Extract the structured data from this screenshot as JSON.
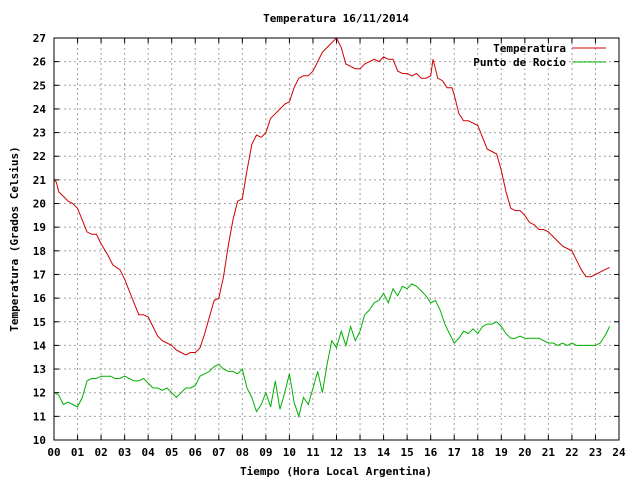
{
  "chart_data": {
    "type": "line",
    "title": "Temperatura 16/11/2014",
    "xlabel": "Tiempo (Hora Local Argentina)",
    "ylabel": "Temperatura (Grados Celsius)",
    "xlim": [
      0,
      24
    ],
    "ylim": [
      10,
      27
    ],
    "x_ticks": [
      "00",
      "01",
      "02",
      "03",
      "04",
      "05",
      "06",
      "07",
      "08",
      "09",
      "10",
      "11",
      "12",
      "13",
      "14",
      "15",
      "16",
      "17",
      "18",
      "19",
      "20",
      "21",
      "22",
      "23",
      "24"
    ],
    "y_ticks": [
      10,
      11,
      12,
      13,
      14,
      15,
      16,
      17,
      18,
      19,
      20,
      21,
      22,
      23,
      24,
      25,
      26,
      27
    ],
    "grid": true,
    "legend_position": "top-right",
    "series": [
      {
        "name": "Temperatura",
        "color": "#d00000",
        "points": [
          [
            0.0,
            21.0
          ],
          [
            0.1,
            20.9
          ],
          [
            0.2,
            20.5
          ],
          [
            0.4,
            20.3
          ],
          [
            0.6,
            20.1
          ],
          [
            0.8,
            20.0
          ],
          [
            1.0,
            19.8
          ],
          [
            1.2,
            19.3
          ],
          [
            1.4,
            18.8
          ],
          [
            1.6,
            18.7
          ],
          [
            1.8,
            18.7
          ],
          [
            2.0,
            18.3
          ],
          [
            2.3,
            17.8
          ],
          [
            2.5,
            17.4
          ],
          [
            2.8,
            17.2
          ],
          [
            3.0,
            16.8
          ],
          [
            3.2,
            16.3
          ],
          [
            3.4,
            15.8
          ],
          [
            3.6,
            15.3
          ],
          [
            3.8,
            15.3
          ],
          [
            4.0,
            15.2
          ],
          [
            4.2,
            14.8
          ],
          [
            4.4,
            14.4
          ],
          [
            4.6,
            14.2
          ],
          [
            4.8,
            14.1
          ],
          [
            5.0,
            14.0
          ],
          [
            5.2,
            13.8
          ],
          [
            5.4,
            13.7
          ],
          [
            5.6,
            13.6
          ],
          [
            5.8,
            13.7
          ],
          [
            6.0,
            13.7
          ],
          [
            6.2,
            13.9
          ],
          [
            6.4,
            14.5
          ],
          [
            6.6,
            15.2
          ],
          [
            6.8,
            15.9
          ],
          [
            7.0,
            16.0
          ],
          [
            7.2,
            16.9
          ],
          [
            7.4,
            18.2
          ],
          [
            7.6,
            19.3
          ],
          [
            7.8,
            20.1
          ],
          [
            8.0,
            20.2
          ],
          [
            8.2,
            21.4
          ],
          [
            8.4,
            22.5
          ],
          [
            8.6,
            22.9
          ],
          [
            8.8,
            22.8
          ],
          [
            9.0,
            23.0
          ],
          [
            9.2,
            23.6
          ],
          [
            9.4,
            23.8
          ],
          [
            9.6,
            24.0
          ],
          [
            9.8,
            24.2
          ],
          [
            10.0,
            24.3
          ],
          [
            10.2,
            24.9
          ],
          [
            10.4,
            25.3
          ],
          [
            10.6,
            25.4
          ],
          [
            10.8,
            25.4
          ],
          [
            11.0,
            25.6
          ],
          [
            11.2,
            26.0
          ],
          [
            11.4,
            26.4
          ],
          [
            11.6,
            26.6
          ],
          [
            11.8,
            26.8
          ],
          [
            12.0,
            27.0
          ],
          [
            12.2,
            26.6
          ],
          [
            12.4,
            25.9
          ],
          [
            12.6,
            25.8
          ],
          [
            12.8,
            25.7
          ],
          [
            13.0,
            25.7
          ],
          [
            13.2,
            25.9
          ],
          [
            13.4,
            26.0
          ],
          [
            13.6,
            26.1
          ],
          [
            13.8,
            26.0
          ],
          [
            14.0,
            26.2
          ],
          [
            14.2,
            26.1
          ],
          [
            14.4,
            26.1
          ],
          [
            14.6,
            25.6
          ],
          [
            14.8,
            25.5
          ],
          [
            15.0,
            25.5
          ],
          [
            15.2,
            25.4
          ],
          [
            15.4,
            25.5
          ],
          [
            15.6,
            25.3
          ],
          [
            15.8,
            25.3
          ],
          [
            16.0,
            25.4
          ],
          [
            16.1,
            26.1
          ],
          [
            16.3,
            25.3
          ],
          [
            16.5,
            25.2
          ],
          [
            16.7,
            24.9
          ],
          [
            16.9,
            24.9
          ],
          [
            17.0,
            24.6
          ],
          [
            17.2,
            23.8
          ],
          [
            17.4,
            23.5
          ],
          [
            17.6,
            23.5
          ],
          [
            17.8,
            23.4
          ],
          [
            18.0,
            23.3
          ],
          [
            18.2,
            22.8
          ],
          [
            18.4,
            22.3
          ],
          [
            18.6,
            22.2
          ],
          [
            18.8,
            22.1
          ],
          [
            19.0,
            21.4
          ],
          [
            19.2,
            20.5
          ],
          [
            19.4,
            19.8
          ],
          [
            19.6,
            19.7
          ],
          [
            19.8,
            19.7
          ],
          [
            20.0,
            19.5
          ],
          [
            20.2,
            19.2
          ],
          [
            20.4,
            19.1
          ],
          [
            20.6,
            18.9
          ],
          [
            20.8,
            18.9
          ],
          [
            21.0,
            18.8
          ],
          [
            21.2,
            18.6
          ],
          [
            21.4,
            18.4
          ],
          [
            21.6,
            18.2
          ],
          [
            21.8,
            18.1
          ],
          [
            22.0,
            18.0
          ],
          [
            22.2,
            17.6
          ],
          [
            22.4,
            17.2
          ],
          [
            22.6,
            16.9
          ],
          [
            22.8,
            16.9
          ],
          [
            23.0,
            17.0
          ],
          [
            23.2,
            17.1
          ],
          [
            23.4,
            17.2
          ],
          [
            23.6,
            17.3
          ]
        ]
      },
      {
        "name": "Punto de Rocío",
        "color": "#00b000",
        "points": [
          [
            0.0,
            12.0
          ],
          [
            0.2,
            11.9
          ],
          [
            0.4,
            11.5
          ],
          [
            0.6,
            11.6
          ],
          [
            0.8,
            11.5
          ],
          [
            1.0,
            11.4
          ],
          [
            1.2,
            11.8
          ],
          [
            1.4,
            12.5
          ],
          [
            1.6,
            12.6
          ],
          [
            1.8,
            12.6
          ],
          [
            2.0,
            12.7
          ],
          [
            2.2,
            12.7
          ],
          [
            2.4,
            12.7
          ],
          [
            2.6,
            12.6
          ],
          [
            2.8,
            12.6
          ],
          [
            3.0,
            12.7
          ],
          [
            3.2,
            12.6
          ],
          [
            3.4,
            12.5
          ],
          [
            3.6,
            12.5
          ],
          [
            3.8,
            12.6
          ],
          [
            4.0,
            12.4
          ],
          [
            4.2,
            12.2
          ],
          [
            4.4,
            12.2
          ],
          [
            4.6,
            12.1
          ],
          [
            4.8,
            12.2
          ],
          [
            5.0,
            12.0
          ],
          [
            5.2,
            11.8
          ],
          [
            5.4,
            12.0
          ],
          [
            5.6,
            12.2
          ],
          [
            5.8,
            12.2
          ],
          [
            6.0,
            12.3
          ],
          [
            6.2,
            12.7
          ],
          [
            6.4,
            12.8
          ],
          [
            6.6,
            12.9
          ],
          [
            6.8,
            13.1
          ],
          [
            7.0,
            13.2
          ],
          [
            7.2,
            13.0
          ],
          [
            7.4,
            12.9
          ],
          [
            7.6,
            12.9
          ],
          [
            7.8,
            12.8
          ],
          [
            8.0,
            13.0
          ],
          [
            8.2,
            12.2
          ],
          [
            8.4,
            11.8
          ],
          [
            8.6,
            11.2
          ],
          [
            8.8,
            11.5
          ],
          [
            9.0,
            12.0
          ],
          [
            9.2,
            11.4
          ],
          [
            9.4,
            12.5
          ],
          [
            9.6,
            11.3
          ],
          [
            9.8,
            12.0
          ],
          [
            10.0,
            12.8
          ],
          [
            10.2,
            11.6
          ],
          [
            10.4,
            11.0
          ],
          [
            10.6,
            11.8
          ],
          [
            10.8,
            11.5
          ],
          [
            11.0,
            12.2
          ],
          [
            11.2,
            12.9
          ],
          [
            11.4,
            12.0
          ],
          [
            11.6,
            13.2
          ],
          [
            11.8,
            14.2
          ],
          [
            12.0,
            13.9
          ],
          [
            12.2,
            14.6
          ],
          [
            12.4,
            14.0
          ],
          [
            12.6,
            14.8
          ],
          [
            12.8,
            14.2
          ],
          [
            13.0,
            14.6
          ],
          [
            13.2,
            15.3
          ],
          [
            13.4,
            15.5
          ],
          [
            13.6,
            15.8
          ],
          [
            13.8,
            15.9
          ],
          [
            14.0,
            16.2
          ],
          [
            14.2,
            15.8
          ],
          [
            14.4,
            16.4
          ],
          [
            14.6,
            16.1
          ],
          [
            14.8,
            16.5
          ],
          [
            15.0,
            16.4
          ],
          [
            15.2,
            16.6
          ],
          [
            15.4,
            16.5
          ],
          [
            15.6,
            16.3
          ],
          [
            15.8,
            16.1
          ],
          [
            16.0,
            15.8
          ],
          [
            16.2,
            15.9
          ],
          [
            16.4,
            15.5
          ],
          [
            16.6,
            14.9
          ],
          [
            16.8,
            14.5
          ],
          [
            17.0,
            14.1
          ],
          [
            17.2,
            14.3
          ],
          [
            17.4,
            14.6
          ],
          [
            17.6,
            14.5
          ],
          [
            17.8,
            14.7
          ],
          [
            18.0,
            14.5
          ],
          [
            18.2,
            14.8
          ],
          [
            18.4,
            14.9
          ],
          [
            18.6,
            14.9
          ],
          [
            18.8,
            15.0
          ],
          [
            19.0,
            14.8
          ],
          [
            19.2,
            14.5
          ],
          [
            19.4,
            14.3
          ],
          [
            19.6,
            14.3
          ],
          [
            19.8,
            14.4
          ],
          [
            20.0,
            14.3
          ],
          [
            20.2,
            14.3
          ],
          [
            20.4,
            14.3
          ],
          [
            20.6,
            14.3
          ],
          [
            20.8,
            14.2
          ],
          [
            21.0,
            14.1
          ],
          [
            21.2,
            14.1
          ],
          [
            21.4,
            14.0
          ],
          [
            21.6,
            14.1
          ],
          [
            21.8,
            14.0
          ],
          [
            22.0,
            14.1
          ],
          [
            22.2,
            14.0
          ],
          [
            22.4,
            14.0
          ],
          [
            22.6,
            14.0
          ],
          [
            22.8,
            14.0
          ],
          [
            23.0,
            14.0
          ],
          [
            23.2,
            14.1
          ],
          [
            23.4,
            14.4
          ],
          [
            23.6,
            14.8
          ]
        ]
      }
    ]
  }
}
